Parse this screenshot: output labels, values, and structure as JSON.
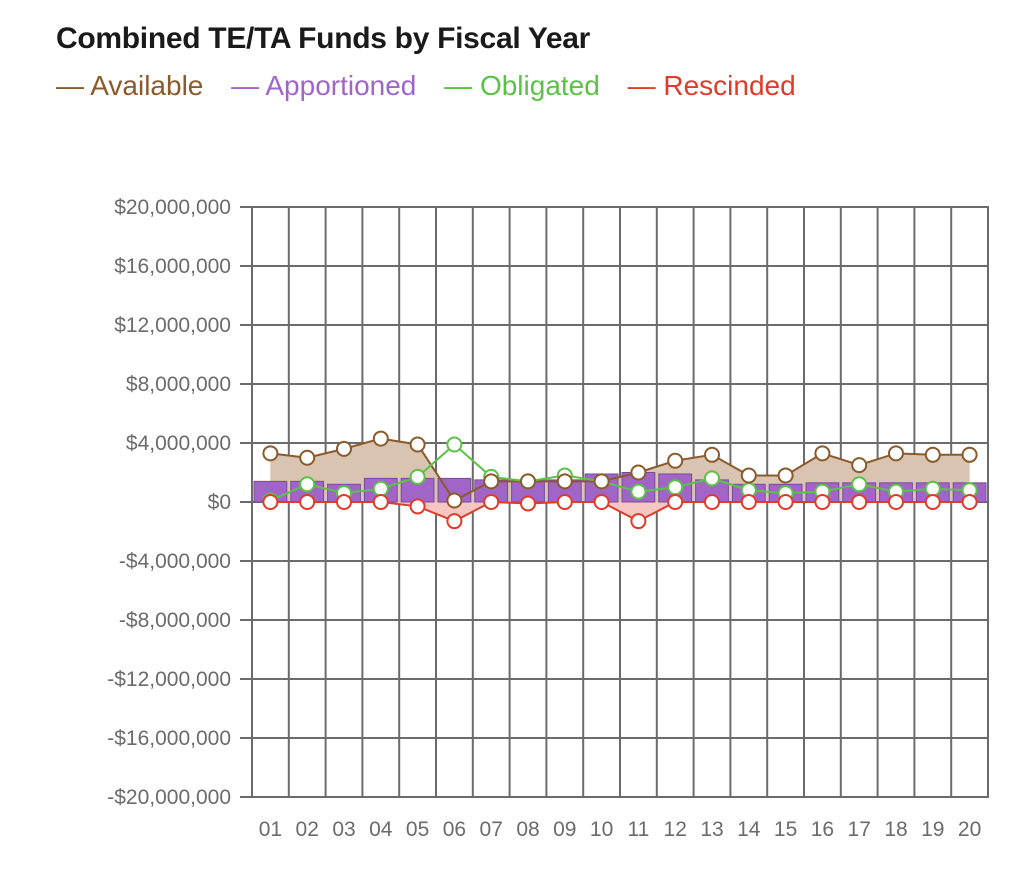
{
  "chart_data": {
    "type": "bar",
    "title": "Combined TE/TA Funds by Fiscal Year",
    "xlabel": "",
    "ylabel": "",
    "categories": [
      "01",
      "02",
      "03",
      "04",
      "05",
      "06",
      "07",
      "08",
      "09",
      "10",
      "11",
      "12",
      "13",
      "14",
      "15",
      "16",
      "17",
      "18",
      "19",
      "20"
    ],
    "y_ticks": [
      "$20,000,000",
      "$16,000,000",
      "$12,000,000",
      "$8,000,000",
      "$4,000,000",
      "$0",
      "-$4,000,000",
      "-$8,000,000",
      "-$12,000,000",
      "-$16,000,000",
      "-$20,000,000"
    ],
    "y_tick_values": [
      20000000,
      16000000,
      12000000,
      8000000,
      4000000,
      0,
      -4000000,
      -8000000,
      -12000000,
      -16000000,
      -20000000
    ],
    "ylim": [
      -20000000,
      20000000
    ],
    "grid": true,
    "legend_position": "top-left",
    "series": [
      {
        "name": "Available",
        "render": "line-area",
        "color": "#8b5a2b",
        "fill": "#d8c4b0",
        "values": [
          3300000,
          3000000,
          3600000,
          4300000,
          3900000,
          100000,
          1400000,
          1400000,
          1400000,
          1400000,
          2000000,
          2800000,
          3200000,
          1800000,
          1800000,
          3300000,
          2500000,
          3300000,
          3200000,
          3200000
        ]
      },
      {
        "name": "Apportioned",
        "render": "bar",
        "color": "#a165c8",
        "stroke": "#7a4a9a",
        "values": [
          1400000,
          1400000,
          1200000,
          1600000,
          1600000,
          1600000,
          1500000,
          1500000,
          1500000,
          1900000,
          2000000,
          1900000,
          1500000,
          1200000,
          1200000,
          1300000,
          1300000,
          1300000,
          1300000,
          1300000
        ]
      },
      {
        "name": "Obligated",
        "render": "line",
        "color": "#5cc247",
        "values": [
          100000,
          1200000,
          600000,
          900000,
          1700000,
          3900000,
          1700000,
          1400000,
          1800000,
          1400000,
          700000,
          1000000,
          1600000,
          800000,
          600000,
          700000,
          1200000,
          700000,
          900000,
          800000
        ]
      },
      {
        "name": "Rescinded",
        "render": "line-area",
        "color": "#e03a2a",
        "fill": "#f6c6c2",
        "values": [
          0,
          0,
          0,
          0,
          -300000,
          -1300000,
          0,
          -100000,
          0,
          0,
          -1300000,
          0,
          0,
          0,
          0,
          0,
          0,
          0,
          0,
          0
        ]
      }
    ]
  },
  "colors": {
    "grid": "#6b6b6b",
    "title": "#1a1a1a",
    "tick": "#6b6b6b"
  },
  "legend_marker": "—"
}
